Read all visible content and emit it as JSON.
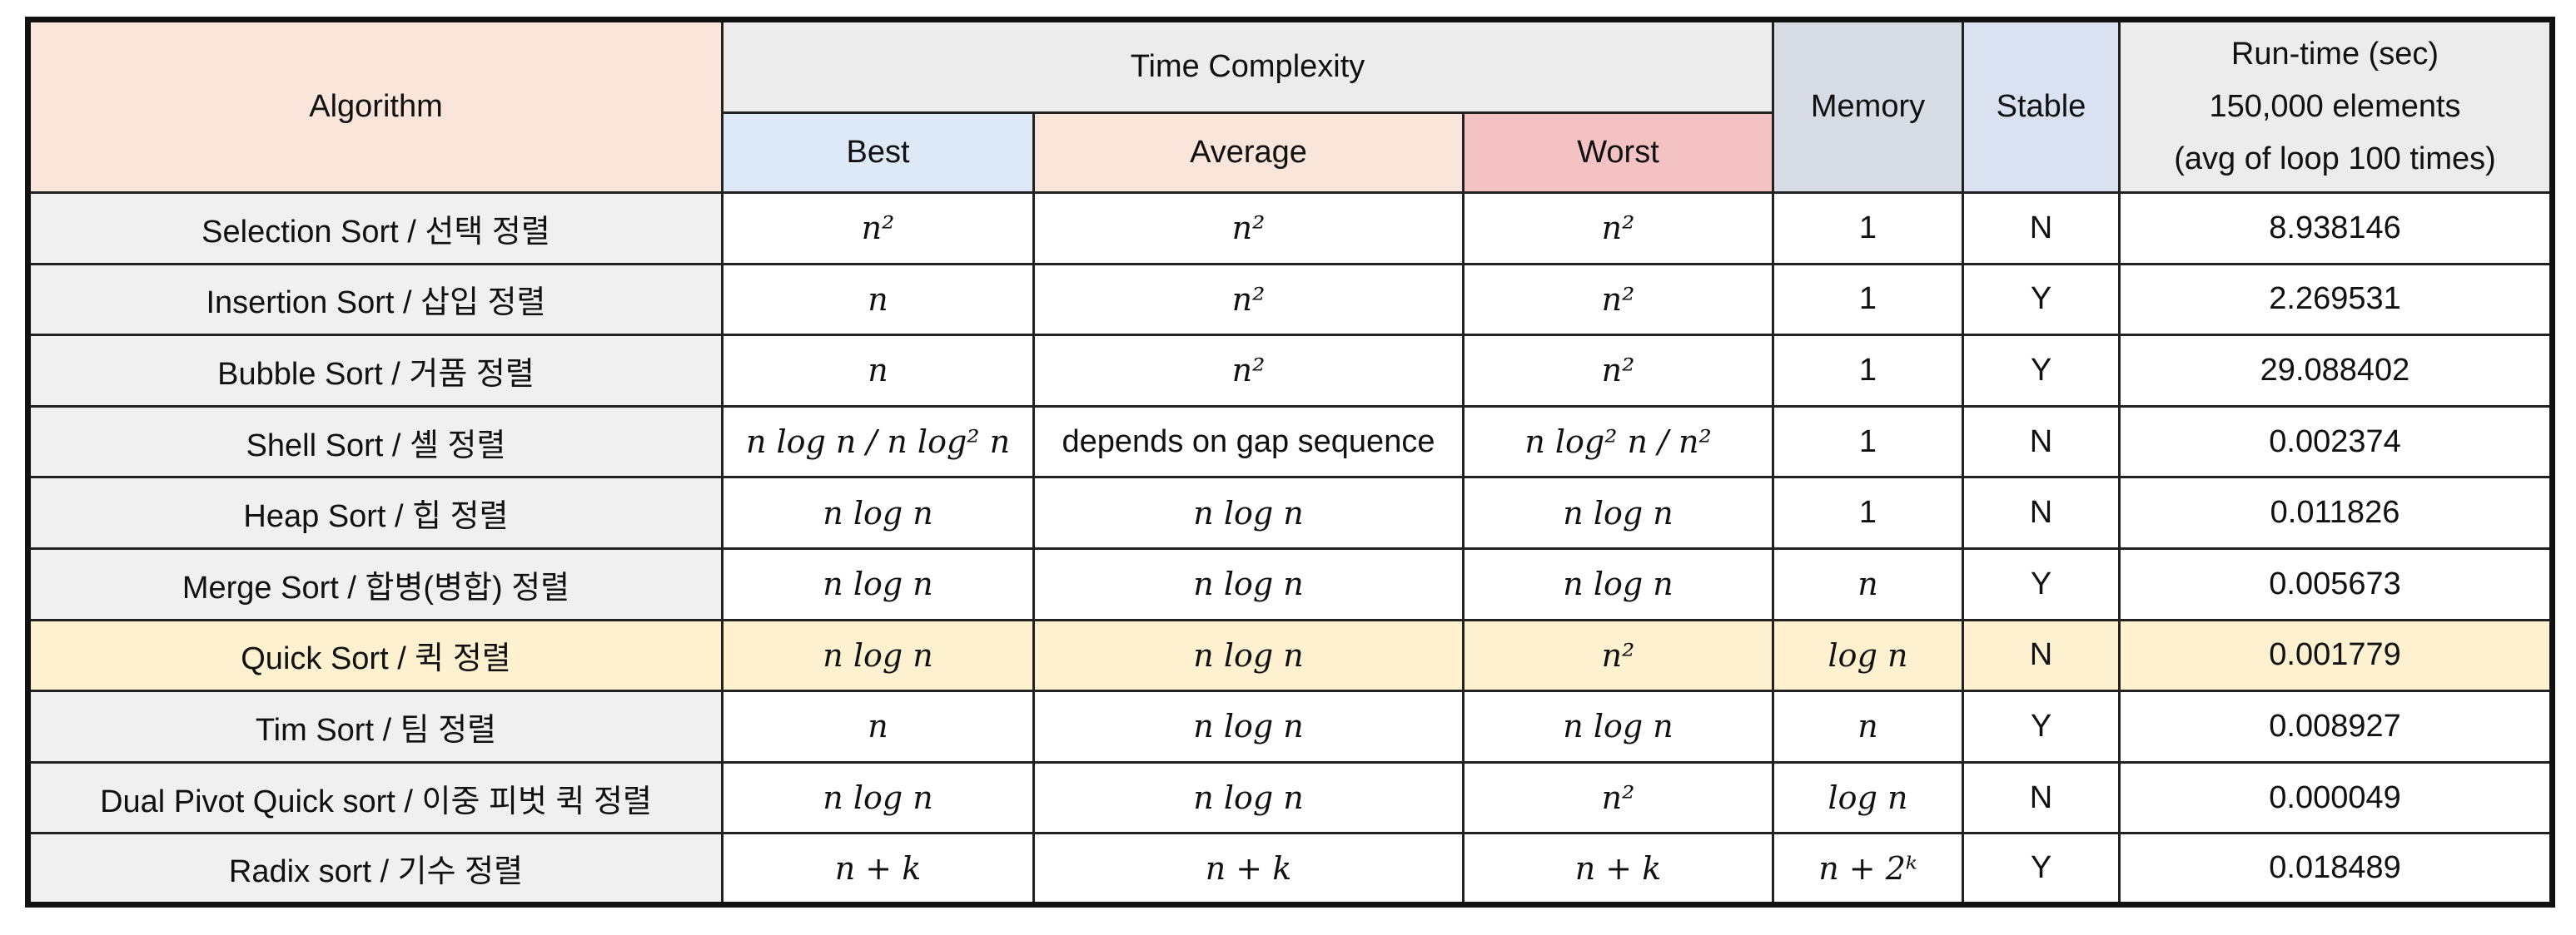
{
  "header": {
    "algorithm": "Algorithm",
    "time_complexity": "Time Complexity",
    "best": "Best",
    "average": "Average",
    "worst": "Worst",
    "memory": "Memory",
    "stable": "Stable",
    "runtime_line1": "Run-time (sec)",
    "runtime_line2": "150,000 elements",
    "runtime_line3": "(avg of loop 100 times)"
  },
  "colors": {
    "algorithm_header": "#f9e5da",
    "time_header": "#ececec",
    "best_header": "#dde9f6",
    "average_header": "#f9e5da",
    "worst_header": "#f4c2c2",
    "memory_header": "#d7dce4",
    "stable_header": "#dae1f1",
    "highlight_row": "#fdf1cf",
    "algorithm_cell": "#f0f0f0"
  },
  "rows": [
    {
      "algorithm": "Selection Sort / 선택 정렬",
      "best": "n²",
      "average": "n²",
      "worst": "n²",
      "memory": "1",
      "stable": "N",
      "runtime": "8.938146"
    },
    {
      "algorithm": "Insertion Sort / 삽입 정렬",
      "best": "n",
      "average": "n²",
      "worst": "n²",
      "memory": "1",
      "stable": "Y",
      "runtime": "2.269531"
    },
    {
      "algorithm": "Bubble Sort / 거품 정렬",
      "best": "n",
      "average": "n²",
      "worst": "n²",
      "memory": "1",
      "stable": "Y",
      "runtime": "29.088402"
    },
    {
      "algorithm": "Shell Sort / 셸 정렬",
      "best": "n log n / n log² n",
      "average": "depends on gap sequence",
      "worst": "n log² n / n²",
      "memory": "1",
      "stable": "N",
      "runtime": "0.002374"
    },
    {
      "algorithm": "Heap Sort / 힙 정렬",
      "best": "n log n",
      "average": "n log n",
      "worst": "n log n",
      "memory": "1",
      "stable": "N",
      "runtime": "0.011826"
    },
    {
      "algorithm": "Merge Sort / 합병(병합) 정렬",
      "best": "n log n",
      "average": "n log n",
      "worst": "n log n",
      "memory": "n",
      "stable": "Y",
      "runtime": "0.005673"
    },
    {
      "algorithm": "Quick Sort / 퀵 정렬",
      "best": "n log n",
      "average": "n log n",
      "worst": "n²",
      "memory": "log n",
      "stable": "N",
      "runtime": "0.001779",
      "highlight": true
    },
    {
      "algorithm": "Tim Sort / 팀 정렬",
      "best": "n",
      "average": "n log n",
      "worst": "n log n",
      "memory": "n",
      "stable": "Y",
      "runtime": "0.008927"
    },
    {
      "algorithm": "Dual Pivot Quick sort / 이중 피벗 퀵 정렬",
      "best": "n log n",
      "average": "n log n",
      "worst": "n²",
      "memory": "log n",
      "stable": "N",
      "runtime": "0.000049"
    },
    {
      "algorithm": "Radix sort / 기수 정렬",
      "best": "n + k",
      "average": "n + k",
      "worst": "n + k",
      "memory": "n + 2ᵏ",
      "stable": "Y",
      "runtime": "0.018489"
    }
  ]
}
